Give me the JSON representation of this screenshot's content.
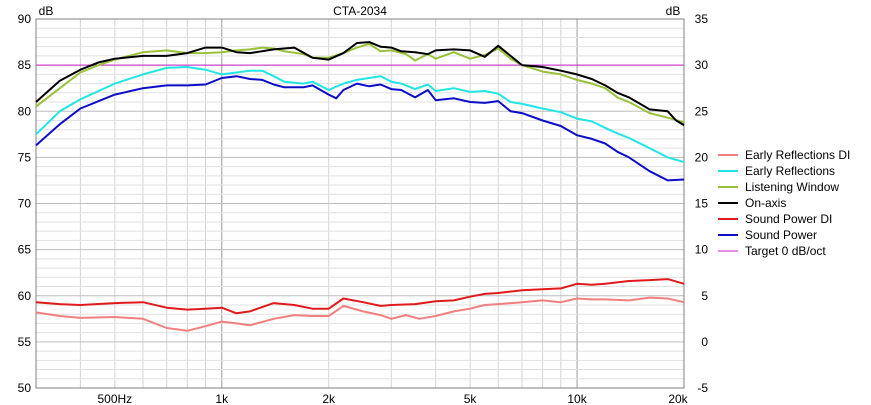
{
  "chart_data": {
    "type": "line",
    "title": "CTA-2034",
    "ylabel_left": "dB",
    "ylabel_right": "dB",
    "x_scale": "log",
    "xlim": [
      300,
      20000
    ],
    "ylim_left": [
      50,
      90
    ],
    "ylim_right": [
      -5,
      35
    ],
    "x_tick_labels": [
      {
        "x": 500,
        "label": "500Hz"
      },
      {
        "x": 1000,
        "label": "1k"
      },
      {
        "x": 2000,
        "label": "2k"
      },
      {
        "x": 5000,
        "label": "5k"
      },
      {
        "x": 10000,
        "label": "10k"
      },
      {
        "x": 20000,
        "label": "20k"
      }
    ],
    "y_left_ticks": [
      50,
      55,
      60,
      65,
      70,
      75,
      80,
      85,
      90
    ],
    "y_right_ticks": [
      -5,
      0,
      5,
      10,
      15,
      20,
      25,
      30,
      35
    ],
    "grid": true,
    "legend_position": "right",
    "series": [
      {
        "name": "Early Reflections DI",
        "color": "#f08080",
        "axis": "right",
        "points": [
          [
            300,
            3.2
          ],
          [
            350,
            2.8
          ],
          [
            400,
            2.6
          ],
          [
            500,
            2.7
          ],
          [
            600,
            2.5
          ],
          [
            700,
            1.5
          ],
          [
            800,
            1.2
          ],
          [
            900,
            1.7
          ],
          [
            1000,
            2.2
          ],
          [
            1100,
            2.0
          ],
          [
            1200,
            1.8
          ],
          [
            1400,
            2.5
          ],
          [
            1600,
            2.9
          ],
          [
            1800,
            2.8
          ],
          [
            2000,
            2.8
          ],
          [
            2200,
            3.9
          ],
          [
            2500,
            3.3
          ],
          [
            2800,
            2.9
          ],
          [
            3000,
            2.5
          ],
          [
            3300,
            2.9
          ],
          [
            3600,
            2.5
          ],
          [
            4000,
            2.8
          ],
          [
            4500,
            3.3
          ],
          [
            5000,
            3.6
          ],
          [
            5500,
            4.0
          ],
          [
            6000,
            4.1
          ],
          [
            7000,
            4.3
          ],
          [
            8000,
            4.5
          ],
          [
            9000,
            4.3
          ],
          [
            10000,
            4.7
          ],
          [
            11000,
            4.6
          ],
          [
            12000,
            4.6
          ],
          [
            14000,
            4.5
          ],
          [
            16000,
            4.8
          ],
          [
            18000,
            4.7
          ],
          [
            20000,
            4.3
          ]
        ]
      },
      {
        "name": "Early Reflections",
        "color": "#22e5e5",
        "axis": "left",
        "points": [
          [
            300,
            77.5
          ],
          [
            350,
            80
          ],
          [
            400,
            81.3
          ],
          [
            500,
            83
          ],
          [
            600,
            84
          ],
          [
            700,
            84.7
          ],
          [
            800,
            84.8
          ],
          [
            900,
            84.5
          ],
          [
            1000,
            84.0
          ],
          [
            1100,
            84.2
          ],
          [
            1200,
            84.4
          ],
          [
            1300,
            84.4
          ],
          [
            1400,
            83.8
          ],
          [
            1500,
            83.2
          ],
          [
            1700,
            83.0
          ],
          [
            1800,
            83.2
          ],
          [
            2000,
            82.3
          ],
          [
            2200,
            83.0
          ],
          [
            2400,
            83.4
          ],
          [
            2600,
            83.6
          ],
          [
            2800,
            83.8
          ],
          [
            3000,
            83.2
          ],
          [
            3200,
            83.0
          ],
          [
            3500,
            82.4
          ],
          [
            3800,
            82.9
          ],
          [
            4000,
            82.2
          ],
          [
            4500,
            82.5
          ],
          [
            5000,
            82.1
          ],
          [
            5500,
            82.2
          ],
          [
            6000,
            81.9
          ],
          [
            6500,
            81
          ],
          [
            7000,
            80.8
          ],
          [
            8000,
            80.3
          ],
          [
            9000,
            79.9
          ],
          [
            10000,
            79.2
          ],
          [
            11000,
            78.9
          ],
          [
            12000,
            78.2
          ],
          [
            13000,
            77.6
          ],
          [
            14000,
            77.1
          ],
          [
            16000,
            76.0
          ],
          [
            18000,
            75.0
          ],
          [
            20000,
            74.5
          ]
        ]
      },
      {
        "name": "Listening Window",
        "color": "#99c13a",
        "axis": "left",
        "points": [
          [
            300,
            80.5
          ],
          [
            350,
            82.5
          ],
          [
            400,
            84.2
          ],
          [
            450,
            85
          ],
          [
            500,
            85.6
          ],
          [
            600,
            86.4
          ],
          [
            700,
            86.6
          ],
          [
            800,
            86.3
          ],
          [
            900,
            86.3
          ],
          [
            1000,
            86.4
          ],
          [
            1100,
            86.6
          ],
          [
            1200,
            86.7
          ],
          [
            1300,
            86.9
          ],
          [
            1400,
            86.8
          ],
          [
            1500,
            86.5
          ],
          [
            1700,
            86.2
          ],
          [
            1800,
            85.8
          ],
          [
            2000,
            85.8
          ],
          [
            2200,
            86.3
          ],
          [
            2400,
            86.9
          ],
          [
            2600,
            87.3
          ],
          [
            2800,
            86.5
          ],
          [
            3000,
            86.6
          ],
          [
            3300,
            86.2
          ],
          [
            3500,
            85.5
          ],
          [
            3800,
            86.2
          ],
          [
            4000,
            85.7
          ],
          [
            4500,
            86.4
          ],
          [
            5000,
            85.7
          ],
          [
            5500,
            86.1
          ],
          [
            6000,
            86.8
          ],
          [
            6500,
            85.7
          ],
          [
            7000,
            85
          ],
          [
            8000,
            84.3
          ],
          [
            9000,
            84.0
          ],
          [
            10000,
            83.4
          ],
          [
            11000,
            83.0
          ],
          [
            12000,
            82.5
          ],
          [
            13000,
            81.5
          ],
          [
            14000,
            81.0
          ],
          [
            16000,
            79.8
          ],
          [
            18000,
            79.3
          ],
          [
            20000,
            78.8
          ]
        ]
      },
      {
        "name": "On-axis",
        "color": "#000000",
        "axis": "left",
        "points": [
          [
            300,
            81
          ],
          [
            350,
            83.3
          ],
          [
            400,
            84.5
          ],
          [
            450,
            85.3
          ],
          [
            500,
            85.7
          ],
          [
            600,
            86.0
          ],
          [
            700,
            86.0
          ],
          [
            800,
            86.3
          ],
          [
            900,
            86.9
          ],
          [
            1000,
            86.9
          ],
          [
            1100,
            86.4
          ],
          [
            1200,
            86.3
          ],
          [
            1400,
            86.7
          ],
          [
            1600,
            86.9
          ],
          [
            1800,
            85.8
          ],
          [
            2000,
            85.6
          ],
          [
            2200,
            86.3
          ],
          [
            2400,
            87.4
          ],
          [
            2600,
            87.5
          ],
          [
            2800,
            87.0
          ],
          [
            3000,
            86.9
          ],
          [
            3200,
            86.5
          ],
          [
            3500,
            86.4
          ],
          [
            3800,
            86.2
          ],
          [
            4000,
            86.6
          ],
          [
            4500,
            86.7
          ],
          [
            5000,
            86.6
          ],
          [
            5500,
            85.9
          ],
          [
            6000,
            87.1
          ],
          [
            6500,
            86.0
          ],
          [
            7000,
            85.0
          ],
          [
            8000,
            84.8
          ],
          [
            9000,
            84.4
          ],
          [
            10000,
            84.0
          ],
          [
            11000,
            83.5
          ],
          [
            12000,
            82.8
          ],
          [
            13000,
            82.0
          ],
          [
            14000,
            81.5
          ],
          [
            16000,
            80.2
          ],
          [
            18000,
            80.0
          ],
          [
            19000,
            79.0
          ],
          [
            20000,
            78.5
          ]
        ]
      },
      {
        "name": "Sound Power DI",
        "color": "#e01a1a",
        "axis": "right",
        "points": [
          [
            300,
            4.3
          ],
          [
            350,
            4.1
          ],
          [
            400,
            4.0
          ],
          [
            500,
            4.2
          ],
          [
            600,
            4.3
          ],
          [
            700,
            3.7
          ],
          [
            800,
            3.5
          ],
          [
            900,
            3.6
          ],
          [
            1000,
            3.7
          ],
          [
            1100,
            3.1
          ],
          [
            1200,
            3.3
          ],
          [
            1400,
            4.2
          ],
          [
            1600,
            4.0
          ],
          [
            1800,
            3.6
          ],
          [
            2000,
            3.6
          ],
          [
            2200,
            4.7
          ],
          [
            2500,
            4.3
          ],
          [
            2800,
            3.9
          ],
          [
            3000,
            4.0
          ],
          [
            3500,
            4.1
          ],
          [
            4000,
            4.4
          ],
          [
            4500,
            4.5
          ],
          [
            5000,
            4.9
          ],
          [
            5500,
            5.2
          ],
          [
            6000,
            5.3
          ],
          [
            7000,
            5.6
          ],
          [
            8000,
            5.7
          ],
          [
            9000,
            5.8
          ],
          [
            10000,
            6.3
          ],
          [
            11000,
            6.2
          ],
          [
            12000,
            6.3
          ],
          [
            14000,
            6.6
          ],
          [
            16000,
            6.7
          ],
          [
            18000,
            6.8
          ],
          [
            20000,
            6.3
          ]
        ]
      },
      {
        "name": "Sound Power",
        "color": "#0d0dc8",
        "axis": "left",
        "points": [
          [
            300,
            76.3
          ],
          [
            350,
            78.6
          ],
          [
            400,
            80.3
          ],
          [
            500,
            81.8
          ],
          [
            600,
            82.5
          ],
          [
            700,
            82.8
          ],
          [
            800,
            82.8
          ],
          [
            900,
            82.9
          ],
          [
            1000,
            83.6
          ],
          [
            1100,
            83.8
          ],
          [
            1200,
            83.5
          ],
          [
            1300,
            83.4
          ],
          [
            1400,
            82.9
          ],
          [
            1500,
            82.6
          ],
          [
            1700,
            82.6
          ],
          [
            1800,
            82.8
          ],
          [
            2000,
            81.8
          ],
          [
            2100,
            81.4
          ],
          [
            2200,
            82.3
          ],
          [
            2400,
            83.0
          ],
          [
            2600,
            82.7
          ],
          [
            2800,
            82.9
          ],
          [
            3000,
            82.4
          ],
          [
            3200,
            82.3
          ],
          [
            3500,
            81.5
          ],
          [
            3800,
            82.3
          ],
          [
            4000,
            81.2
          ],
          [
            4500,
            81.4
          ],
          [
            5000,
            81.0
          ],
          [
            5500,
            80.9
          ],
          [
            6000,
            81.1
          ],
          [
            6500,
            80
          ],
          [
            7000,
            79.8
          ],
          [
            8000,
            79.0
          ],
          [
            9000,
            78.4
          ],
          [
            10000,
            77.4
          ],
          [
            11000,
            77.0
          ],
          [
            12000,
            76.5
          ],
          [
            13000,
            75.6
          ],
          [
            14000,
            75.0
          ],
          [
            16000,
            73.5
          ],
          [
            18000,
            72.5
          ],
          [
            20000,
            72.6
          ]
        ]
      },
      {
        "name": "Target 0 dB/oct",
        "color": "#cc22cc",
        "axis": "left",
        "points": [
          [
            300,
            85
          ],
          [
            20000,
            85
          ]
        ]
      }
    ]
  }
}
